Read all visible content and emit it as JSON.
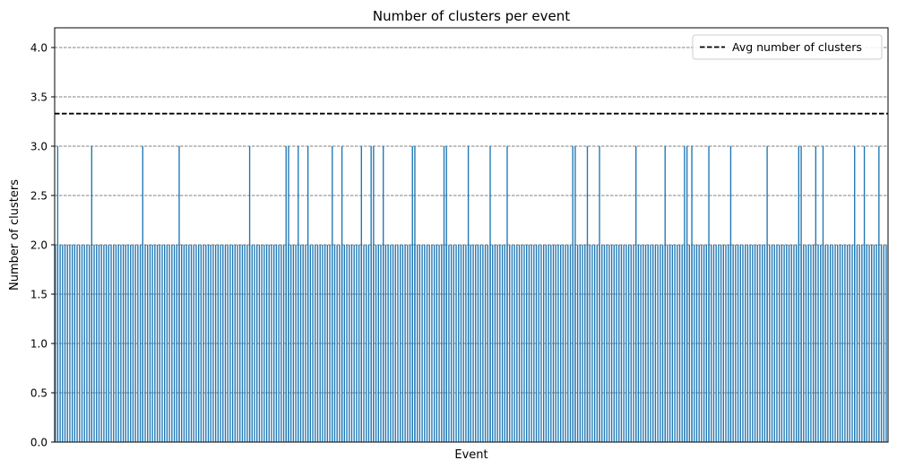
{
  "chart_data": {
    "type": "bar",
    "title": "Number of clusters per event",
    "xlabel": "Event",
    "ylabel": "Number of clusters",
    "ylim": [
      0,
      4.2
    ],
    "yticks": [
      "0.0",
      "0.5",
      "1.0",
      "1.5",
      "2.0",
      "2.5",
      "3.0",
      "3.5",
      "4.0"
    ],
    "grid": "y-dashed",
    "bar_color": "#1f77b4",
    "event_count": 343,
    "values_note_base": 2,
    "spike_value": 3,
    "spike_events": [
      1,
      15,
      36,
      51,
      80,
      95,
      96,
      100,
      104,
      114,
      118,
      126,
      130,
      131,
      135,
      147,
      148,
      160,
      161,
      170,
      179,
      186,
      213,
      214,
      219,
      224,
      239,
      251,
      259,
      260,
      262,
      269,
      278,
      293,
      306,
      307,
      313,
      316,
      329,
      333,
      339
    ],
    "avg_line": {
      "value": 3.33,
      "label": "Avg number of clusters",
      "style": "dashed",
      "color": "#000000"
    },
    "legend_position": "top-right"
  }
}
